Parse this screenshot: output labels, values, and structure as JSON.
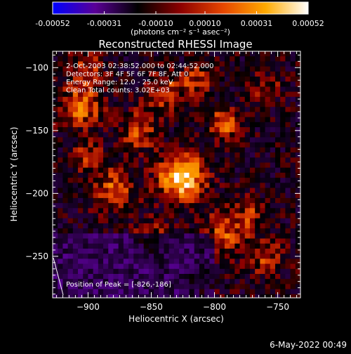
{
  "footer": {
    "date": "6-May-2022 00:49"
  },
  "colorbar": {
    "tick_labels": [
      "-0.00052",
      "-0.00031",
      "-0.00010",
      "0.00010",
      "0.00031",
      "0.00052"
    ],
    "tick_values": [
      -0.00052,
      -0.00031,
      -0.0001,
      0.0001,
      0.00031,
      0.00052
    ],
    "range": [
      -0.00052,
      0.00052
    ],
    "units_label": "(photons cm⁻² s⁻¹ asec⁻²)",
    "colors": [
      "#0000ff",
      "#5a0096",
      "#000000",
      "#8c0000",
      "#e64600",
      "#ffaa00",
      "#ffffff"
    ]
  },
  "chart_data": {
    "type": "heatmap",
    "title": "Reconstructed RHESSI Image",
    "xlabel": "Heliocentric X (arcsec)",
    "ylabel": "Heliocentric Y (arcsec)",
    "xlim": [
      -928,
      -732
    ],
    "ylim": [
      -283,
      -87
    ],
    "x_ticks": [
      -900,
      -850,
      -800,
      -750
    ],
    "x_tick_labels": [
      "−900",
      "−850",
      "−800",
      "−750"
    ],
    "y_ticks": [
      -250,
      -200,
      -150,
      -100
    ],
    "y_tick_labels": [
      "−250",
      "−200",
      "−150",
      "−100"
    ],
    "info_lines": [
      "2-Oct-2003 02:38:52.000 to 02:44:52.000",
      "Detectors: 3F 4F 5F 6F 7F 8F, Att 0",
      "Energy Range: 12.0 - 25.0 keV",
      "Clean    Total counts: 3.02E+03"
    ],
    "peak_label": "Position of Peak = [-826,-186]",
    "peak": [
      -826,
      -186
    ],
    "grid": false
  }
}
